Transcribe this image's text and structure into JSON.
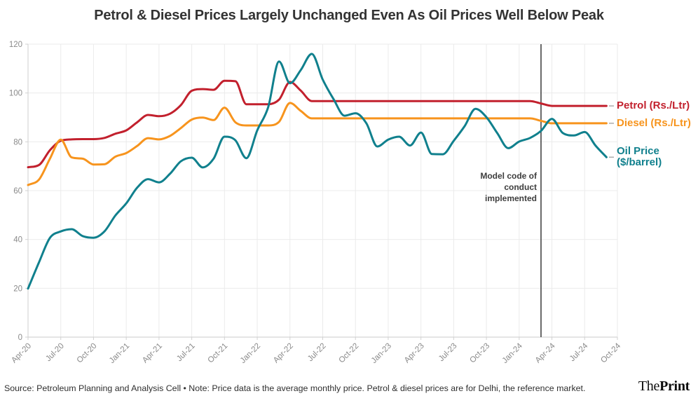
{
  "title": "Petrol & Diesel Prices Largely Unchanged Even As Oil Prices Well Below Peak",
  "footer": {
    "source_note": "Source: Petroleum Planning and Analysis Cell • Note: Price data is the average monthly price. Petrol & diesel prices are for Delhi, the reference market.",
    "logo_the": "The",
    "logo_print": "Print"
  },
  "chart_data": {
    "type": "line",
    "x_unit": "month",
    "x_start": "Apr-20",
    "x_end": "Sep-24",
    "x_tick_labels": [
      "Apr-20",
      "Jul-20",
      "Oct-20",
      "Jan-21",
      "Apr-21",
      "Jul-21",
      "Oct-21",
      "Jan-22",
      "Apr-22",
      "Jul-22",
      "Oct-22",
      "Jan-23",
      "Apr-23",
      "Jul-23",
      "Oct-23",
      "Jan-24",
      "Apr-24",
      "Jul-24",
      "Oct-24"
    ],
    "ylim": [
      0,
      120
    ],
    "y_ticks": [
      0,
      20,
      40,
      60,
      80,
      100,
      120
    ],
    "grid": true,
    "legend_position": "right",
    "series": [
      {
        "key": "petrol",
        "name": "Petrol (Rs./Ltr)",
        "color": "#c2202d",
        "values": [
          69.6,
          70.5,
          76.5,
          80.4,
          81.0,
          81.1,
          81.1,
          81.6,
          83.3,
          84.7,
          88.0,
          91.0,
          90.5,
          91.5,
          95.0,
          100.9,
          101.6,
          101.3,
          105.0,
          104.8,
          95.4,
          95.4,
          95.4,
          97.3,
          104.5,
          100.9,
          96.7,
          96.7,
          96.7,
          96.7,
          96.7,
          96.7,
          96.7,
          96.7,
          96.7,
          96.7,
          96.7,
          96.7,
          96.7,
          96.7,
          96.7,
          96.7,
          96.7,
          96.7,
          96.7,
          96.7,
          96.7,
          95.7,
          94.7,
          94.7,
          94.7,
          94.7,
          94.7,
          94.7
        ]
      },
      {
        "key": "diesel",
        "name": "Diesel (Rs./Ltr)",
        "color": "#f7941d",
        "values": [
          62.3,
          64.5,
          73.0,
          80.9,
          73.6,
          73.1,
          70.7,
          70.8,
          73.9,
          75.4,
          78.3,
          81.5,
          81.0,
          82.4,
          85.6,
          89.1,
          89.9,
          88.9,
          94.0,
          88.0,
          86.7,
          86.7,
          86.7,
          88.2,
          95.9,
          92.6,
          89.6,
          89.6,
          89.6,
          89.6,
          89.6,
          89.6,
          89.6,
          89.6,
          89.6,
          89.6,
          89.6,
          89.6,
          89.6,
          89.6,
          89.6,
          89.6,
          89.6,
          89.6,
          89.6,
          89.6,
          89.6,
          88.6,
          87.6,
          87.6,
          87.6,
          87.6,
          87.6,
          87.6
        ]
      },
      {
        "key": "oil",
        "name": "Oil Price ($/barrel)",
        "color": "#10808d",
        "values": [
          19.9,
          30.6,
          40.6,
          43.3,
          44.2,
          41.4,
          40.7,
          43.3,
          49.8,
          54.8,
          61.2,
          64.7,
          63.4,
          66.9,
          72.0,
          73.5,
          69.5,
          73.1,
          82.1,
          80.6,
          73.3,
          84.7,
          94.1,
          112.9,
          104.0,
          109.5,
          116.0,
          105.5,
          97.4,
          90.7,
          91.7,
          87.6,
          78.1,
          80.9,
          82.1,
          78.5,
          83.8,
          75.0,
          74.9,
          80.4,
          86.4,
          93.5,
          90.1,
          83.5,
          77.4,
          80.1,
          81.6,
          84.5,
          89.4,
          83.6,
          82.6,
          84.0,
          78.4,
          73.7
        ]
      }
    ],
    "event_line": {
      "label": "Model code of conduct implemented",
      "month_index": 47,
      "x_position_label": "Mar-24"
    }
  }
}
